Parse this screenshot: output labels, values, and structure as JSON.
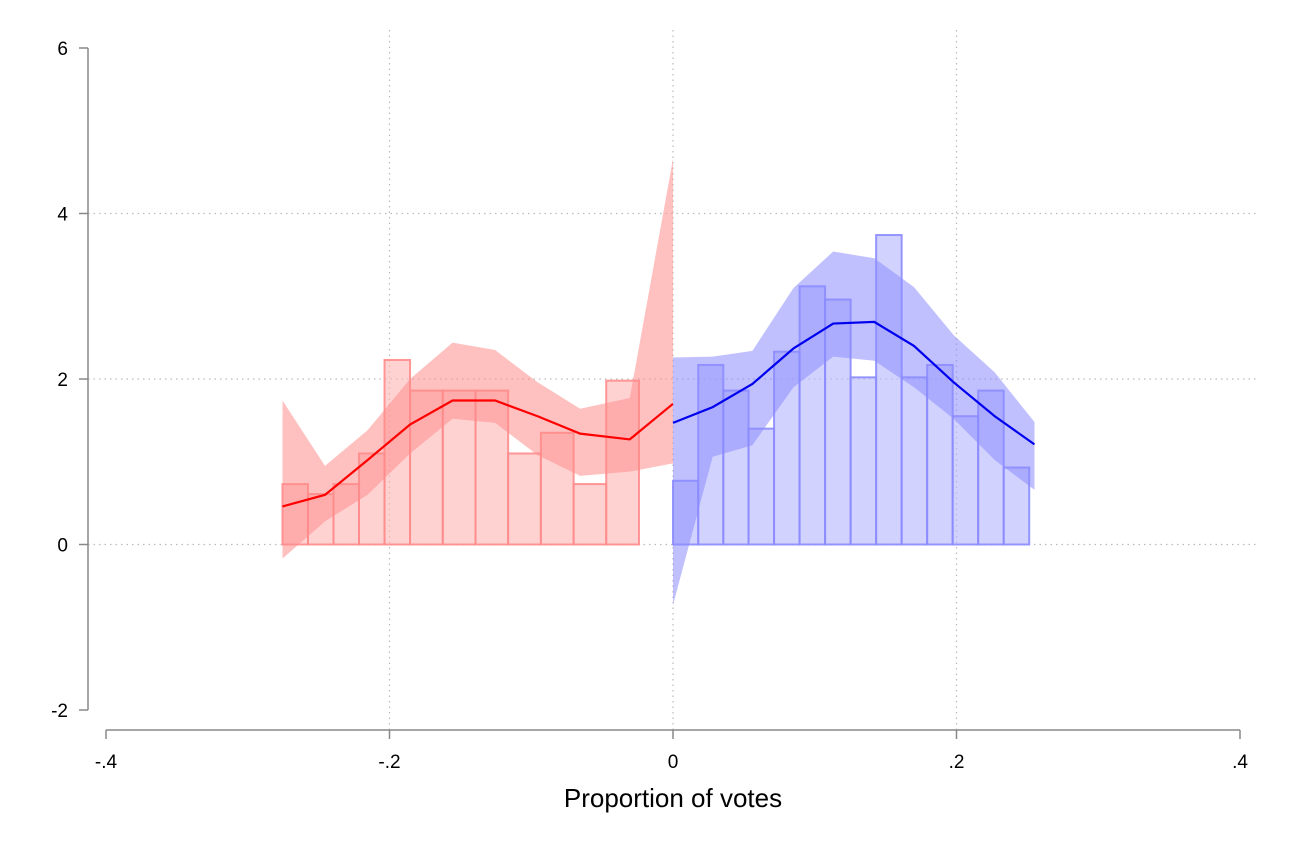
{
  "chart_data": {
    "type": "bar",
    "xlabel": "Proportion of votes",
    "ylabel": "",
    "title": "",
    "xlim": [
      -0.4,
      0.4
    ],
    "ylim": [
      -2,
      6
    ],
    "x_ticks": [
      -0.4,
      -0.2,
      0,
      0.2,
      0.4
    ],
    "x_tick_labels": [
      "-.4",
      "-.2",
      "0",
      ".2",
      ".4"
    ],
    "y_ticks": [
      -2,
      0,
      2,
      4,
      6
    ],
    "y_tick_labels": [
      "-2",
      "0",
      "2",
      "4",
      "6"
    ],
    "grid": true,
    "cutoff": 0,
    "colors": {
      "left": "#ff0000",
      "left_band": "#ff8c8c",
      "left_bar": "#ffb4b4",
      "right": "#0000ee",
      "right_band": "#8c8cff",
      "right_bar": "#b4b4ff"
    },
    "histogram_left": {
      "bin_edges": [
        -0.2755,
        -0.2575,
        -0.2395,
        -0.2215,
        -0.2035,
        -0.1855,
        -0.1624,
        -0.1393,
        -0.1163,
        -0.0932,
        -0.0701,
        -0.0471,
        -0.024,
        0
      ],
      "values": [
        0.73,
        0.61,
        0.73,
        1.1,
        2.23,
        1.86,
        1.86,
        1.86,
        1.1,
        1.35,
        0.73,
        1.98,
        0
      ]
    },
    "histogram_right": {
      "bin_edges": [
        0,
        0.0178,
        0.0355,
        0.0533,
        0.0713,
        0.0893,
        0.1073,
        0.1253,
        0.1433,
        0.1613,
        0.1793,
        0.1973,
        0.2153,
        0.2333,
        0.2513
      ],
      "values": [
        0.77,
        2.17,
        1.86,
        1.4,
        2.33,
        3.12,
        2.96,
        2.02,
        3.74,
        2.02,
        2.17,
        1.55,
        1.86,
        0.93
      ]
    },
    "fit_left": {
      "x": [
        -0.2755,
        -0.2455,
        -0.2155,
        -0.1855,
        -0.1555,
        -0.1255,
        -0.0955,
        -0.0655,
        -0.0305,
        0
      ],
      "y": [
        0.46,
        0.6,
        1.02,
        1.45,
        1.74,
        1.74,
        1.55,
        1.34,
        1.27,
        1.7
      ],
      "ci_low": [
        -0.17,
        0.28,
        0.6,
        1.1,
        1.52,
        1.47,
        1.08,
        0.83,
        0.88,
        0.98
      ],
      "ci_high": [
        1.74,
        0.95,
        1.38,
        2.0,
        2.44,
        2.35,
        1.96,
        1.64,
        1.77,
        4.66
      ]
    },
    "fit_right": {
      "x": [
        0,
        0.028,
        0.056,
        0.085,
        0.113,
        0.142,
        0.17,
        0.198,
        0.227,
        0.255
      ],
      "y": [
        1.47,
        1.66,
        1.94,
        2.37,
        2.67,
        2.69,
        2.4,
        1.96,
        1.55,
        1.21
      ],
      "ci_low": [
        -0.73,
        1.06,
        1.2,
        1.9,
        2.27,
        2.22,
        1.9,
        1.52,
        1.02,
        0.66
      ],
      "ci_high": [
        2.26,
        2.27,
        2.34,
        3.1,
        3.54,
        3.46,
        3.11,
        2.53,
        2.08,
        1.48
      ]
    }
  }
}
